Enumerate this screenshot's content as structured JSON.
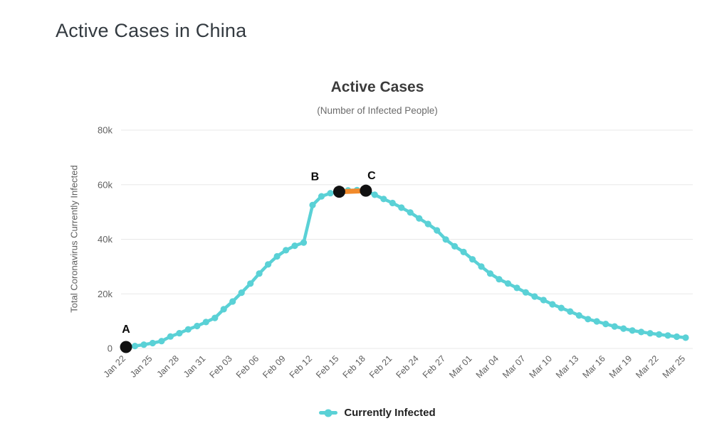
{
  "page": {
    "title": "Active Cases in China"
  },
  "chart": {
    "title": "Active Cases",
    "subtitle": "(Number of Infected People)",
    "y_axis_title": "Total Coronavirus Currently Infected",
    "legend": {
      "label": "Currently Infected"
    },
    "colors": {
      "series": "#5ad1d6",
      "highlight": "#f18a2b",
      "annotation_dot": "#111111",
      "gridline": "#e8e8e8",
      "axis_text": "#606060",
      "annotation_text": "#0a0a0a"
    }
  },
  "chart_data": {
    "type": "line",
    "title": "Active Cases",
    "subtitle": "(Number of Infected People)",
    "xlabel": "",
    "ylabel": "Total Coronavirus Currently Infected",
    "ylim": [
      0,
      80000
    ],
    "yticks": [
      {
        "value": 0,
        "label": "0"
      },
      {
        "value": 20000,
        "label": "20k"
      },
      {
        "value": 40000,
        "label": "40k"
      },
      {
        "value": 60000,
        "label": "60k"
      },
      {
        "value": 80000,
        "label": "80k"
      }
    ],
    "xtick_every": 3,
    "grid": "horizontal",
    "legend_position": "bottom",
    "x": [
      "Jan 22",
      "Jan 23",
      "Jan 24",
      "Jan 25",
      "Jan 26",
      "Jan 27",
      "Jan 28",
      "Jan 29",
      "Jan 30",
      "Jan 31",
      "Feb 01",
      "Feb 02",
      "Feb 03",
      "Feb 04",
      "Feb 05",
      "Feb 06",
      "Feb 07",
      "Feb 08",
      "Feb 09",
      "Feb 10",
      "Feb 11",
      "Feb 12",
      "Feb 13",
      "Feb 14",
      "Feb 15",
      "Feb 16",
      "Feb 17",
      "Feb 18",
      "Feb 19",
      "Feb 20",
      "Feb 21",
      "Feb 22",
      "Feb 23",
      "Feb 24",
      "Feb 25",
      "Feb 26",
      "Feb 27",
      "Feb 28",
      "Feb 29",
      "Mar 01",
      "Mar 02",
      "Mar 03",
      "Mar 04",
      "Mar 05",
      "Mar 06",
      "Mar 07",
      "Mar 08",
      "Mar 09",
      "Mar 10",
      "Mar 11",
      "Mar 12",
      "Mar 13",
      "Mar 14",
      "Mar 15",
      "Mar 16",
      "Mar 17",
      "Mar 18",
      "Mar 19",
      "Mar 20",
      "Mar 21",
      "Mar 22",
      "Mar 23",
      "Mar 24",
      "Mar 25"
    ],
    "series": [
      {
        "name": "Currently Infected",
        "color": "#5ad1d6",
        "values": [
          528,
          891,
          1372,
          1965,
          2684,
          4373,
          5573,
          6973,
          8214,
          9657,
          11177,
          14348,
          17205,
          20438,
          23760,
          27433,
          30802,
          33738,
          35982,
          37626,
          38800,
          52526,
          55748,
          56873,
          57416,
          57934,
          58016,
          57805,
          56303,
          54771,
          53284,
          51606,
          49824,
          47672,
          45604,
          43258,
          39919,
          37414,
          35329,
          32652,
          30004,
          27433,
          25352,
          23784,
          22177,
          20533,
          19016,
          17721,
          16145,
          14831,
          13526,
          12094,
          10734,
          9898,
          8976,
          8056,
          7263,
          6569,
          6013,
          5549,
          5120,
          4735,
          4287,
          3947
        ]
      }
    ],
    "annotations": {
      "points": [
        {
          "label": "A",
          "date": "Jan 22"
        },
        {
          "label": "B",
          "date": "Feb 15"
        },
        {
          "label": "C",
          "date": "Feb 18"
        }
      ],
      "highlight_segment": {
        "from": "Feb 15",
        "to": "Feb 18",
        "color": "#f18a2b"
      }
    }
  }
}
